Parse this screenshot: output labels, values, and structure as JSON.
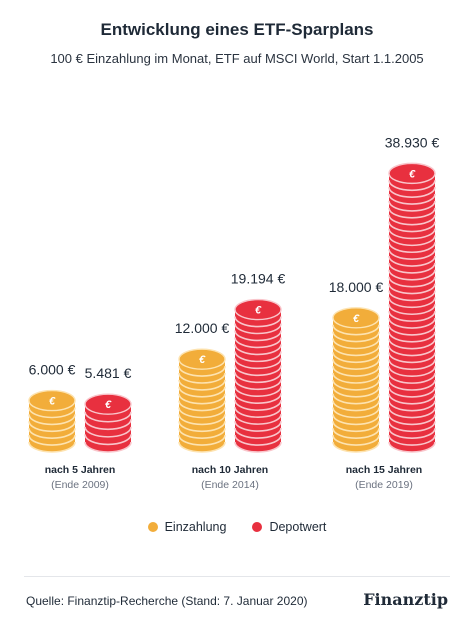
{
  "title": "Entwicklung eines ETF-Sparplans",
  "subtitle": "100 € Einzahlung im Monat, ETF auf MSCI World, Start 1.1.2005",
  "colors": {
    "einzahlung": "#f2ad3a",
    "einzahlung_light": "#fde3b0",
    "einzahlung_dark": "#dc962a",
    "depotwert": "#e8303f",
    "depotwert_light": "#f9c5cb",
    "depotwert_dark": "#c8202f",
    "coin_symbol": "#ffffff"
  },
  "chart_data": {
    "type": "bar",
    "categories": [
      "nach 5 Jahren",
      "nach 10 Jahren",
      "nach 15 Jahren"
    ],
    "sublabels": [
      "(Ende 2009)",
      "(Ende 2014)",
      "(Ende 2019)"
    ],
    "series": [
      {
        "name": "Einzahlung",
        "values": [
          6000,
          12000,
          18000
        ],
        "value_labels": [
          "6.000 €",
          "12.000 €",
          "18.000 €"
        ]
      },
      {
        "name": "Depotwert",
        "values": [
          5481,
          19194,
          38930
        ],
        "value_labels": [
          "5.481 €",
          "19.194 €",
          "38.930 €"
        ]
      }
    ],
    "coin_symbol": "€",
    "legend_position": "bottom-center",
    "grid": false
  },
  "legend": [
    {
      "label": "Einzahlung",
      "color": "#f2ad3a"
    },
    {
      "label": "Depotwert",
      "color": "#e8303f"
    }
  ],
  "footer": {
    "source": "Quelle: Finanztip-Recherche (Stand: 7. Januar 2020)",
    "brand": "Finanztip"
  }
}
